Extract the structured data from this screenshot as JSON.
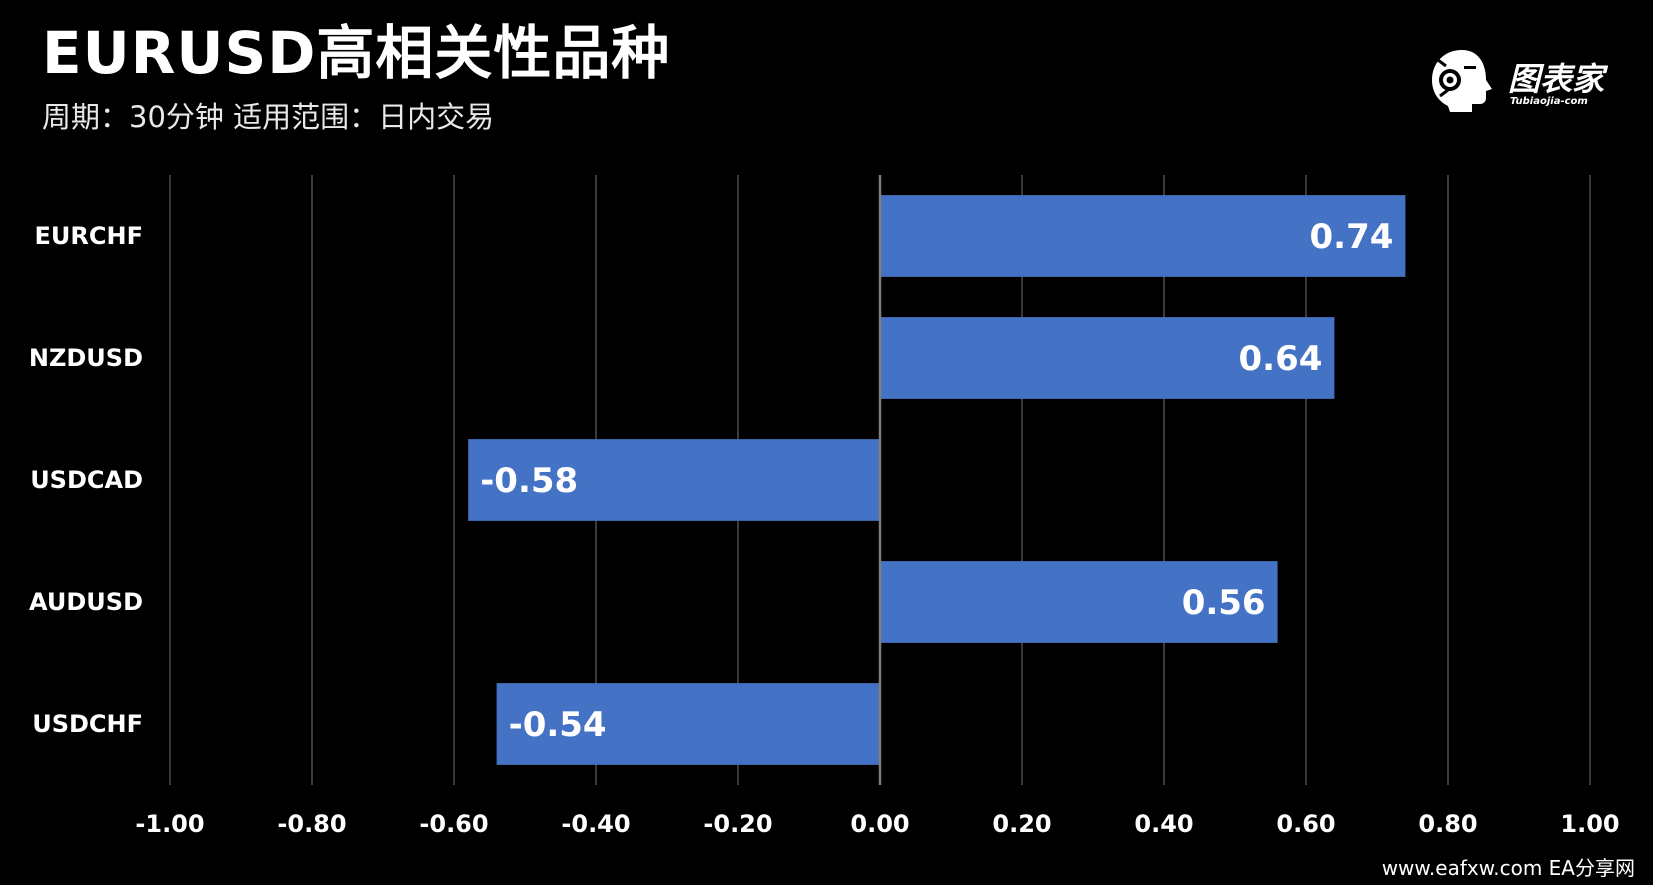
{
  "header": {
    "title": "EURUSD高相关性品种",
    "subtitle": "周期：30分钟  适用范围：日内交易"
  },
  "logo": {
    "text": "图表家",
    "subtext": "Tubiaojia-com",
    "icon": "robot-head-icon"
  },
  "watermark": "www.eafxw.com   EA分享网",
  "colors": {
    "background": "#000000",
    "bar": "#4472C4",
    "grid": "#3a3a3a",
    "axis": "#7f7f7f",
    "text": "#ffffff"
  },
  "chart_data": {
    "type": "bar",
    "orientation": "horizontal",
    "categories": [
      "EURCHF",
      "NZDUSD",
      "USDCAD",
      "AUDUSD",
      "USDCHF"
    ],
    "values": [
      0.74,
      0.64,
      -0.58,
      0.56,
      -0.54
    ],
    "data_labels": [
      "0.74",
      "0.64",
      "-0.58",
      "0.56",
      "-0.54"
    ],
    "xlim": [
      -1.0,
      1.0
    ],
    "x_ticks": [
      -1.0,
      -0.8,
      -0.6,
      -0.4,
      -0.2,
      0.0,
      0.2,
      0.4,
      0.6,
      0.8,
      1.0
    ],
    "x_tick_labels": [
      "-1.00",
      "-0.80",
      "-0.60",
      "-0.40",
      "-0.20",
      "0.00",
      "0.20",
      "0.40",
      "0.60",
      "0.80",
      "1.00"
    ],
    "grid": true,
    "legend": false
  }
}
